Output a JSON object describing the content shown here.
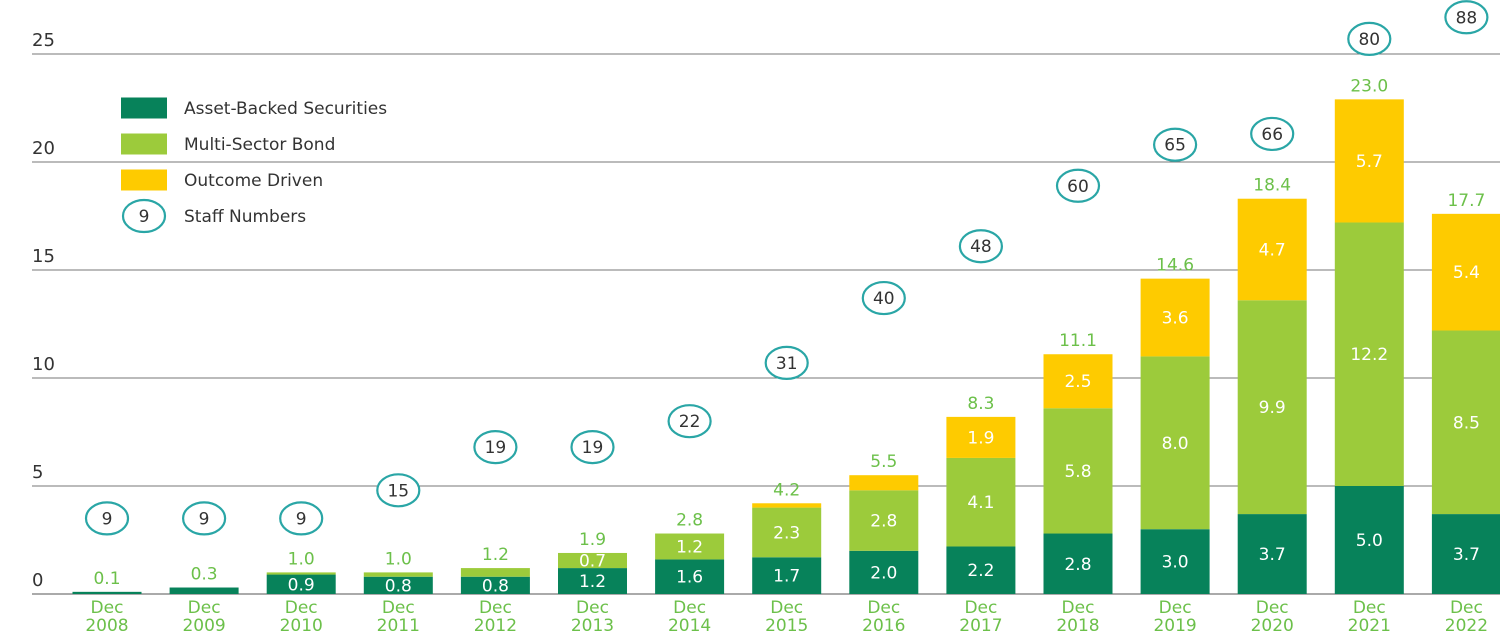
{
  "chart_data": {
    "type": "bar",
    "stacked": true,
    "title": "",
    "xlabel": "",
    "ylabel": "",
    "ylim": [
      0,
      25
    ],
    "yticks": [
      0,
      5,
      10,
      15,
      20,
      25
    ],
    "grid": true,
    "legend_position": "top-left",
    "categories": [
      [
        "Dec",
        "2008"
      ],
      [
        "Dec",
        "2009"
      ],
      [
        "Dec",
        "2010"
      ],
      [
        "Dec",
        "2011"
      ],
      [
        "Dec",
        "2012"
      ],
      [
        "Dec",
        "2013"
      ],
      [
        "Dec",
        "2014"
      ],
      [
        "Dec",
        "2015"
      ],
      [
        "Dec",
        "2016"
      ],
      [
        "Dec",
        "2017"
      ],
      [
        "Dec",
        "2018"
      ],
      [
        "Dec",
        "2019"
      ],
      [
        "Dec",
        "2020"
      ],
      [
        "Dec",
        "2021"
      ],
      [
        "Dec",
        "2022"
      ]
    ],
    "series": [
      {
        "name": "Asset-Backed Securities",
        "color": "#07825a",
        "values": [
          0.1,
          0.3,
          0.9,
          0.8,
          0.8,
          1.2,
          1.6,
          1.7,
          2.0,
          2.2,
          2.8,
          3.0,
          3.7,
          5.0,
          3.7
        ],
        "labels": [
          "",
          "",
          "0.9",
          "0.8",
          "0.8",
          "1.2",
          "1.6",
          "1.7",
          "2.0",
          "2.2",
          "2.8",
          "3.0",
          "3.7",
          "5.0",
          "3.7"
        ]
      },
      {
        "name": "Multi-Sector Bond",
        "color": "#9ccb3b",
        "values": [
          0,
          0,
          0.1,
          0.2,
          0.4,
          0.7,
          1.2,
          2.3,
          2.8,
          4.1,
          5.8,
          8.0,
          9.9,
          12.2,
          8.5
        ],
        "labels": [
          "",
          "",
          "",
          "",
          "",
          "0.7",
          "1.2",
          "2.3",
          "2.8",
          "4.1",
          "5.8",
          "8.0",
          "9.9",
          "12.2",
          "8.5"
        ]
      },
      {
        "name": "Outcome Driven",
        "color": "#fecb00",
        "values": [
          0,
          0,
          0,
          0,
          0,
          0,
          0,
          0.2,
          0.7,
          1.9,
          2.5,
          3.6,
          4.7,
          5.7,
          5.4
        ],
        "labels": [
          "",
          "",
          "",
          "",
          "",
          "",
          "",
          "",
          "",
          "1.9",
          "2.5",
          "3.6",
          "4.7",
          "5.7",
          "5.4"
        ]
      }
    ],
    "totals": [
      "0.1",
      "0.3",
      "1.0",
      "1.0",
      "1.2",
      "1.9",
      "2.8",
      "4.2",
      "5.5",
      "8.3",
      "11.1",
      "14.6",
      "18.4",
      "23.0",
      "17.7"
    ],
    "staff_numbers": {
      "name": "Staff Numbers",
      "legend_sample": "9",
      "values": [
        9,
        9,
        9,
        15,
        19,
        19,
        22,
        31,
        40,
        48,
        60,
        65,
        66,
        80,
        88
      ],
      "plot_levels": [
        3.5,
        3.5,
        3.5,
        4.8,
        6.8,
        6.8,
        8.0,
        10.7,
        13.7,
        16.1,
        18.9,
        20.8,
        21.3,
        25.7,
        26.7
      ]
    },
    "colors": {
      "staff_circle": "#2aa6a6",
      "total_label": "#6cc04a",
      "category_label": "#6cc04a",
      "gridline": "#777777"
    }
  }
}
